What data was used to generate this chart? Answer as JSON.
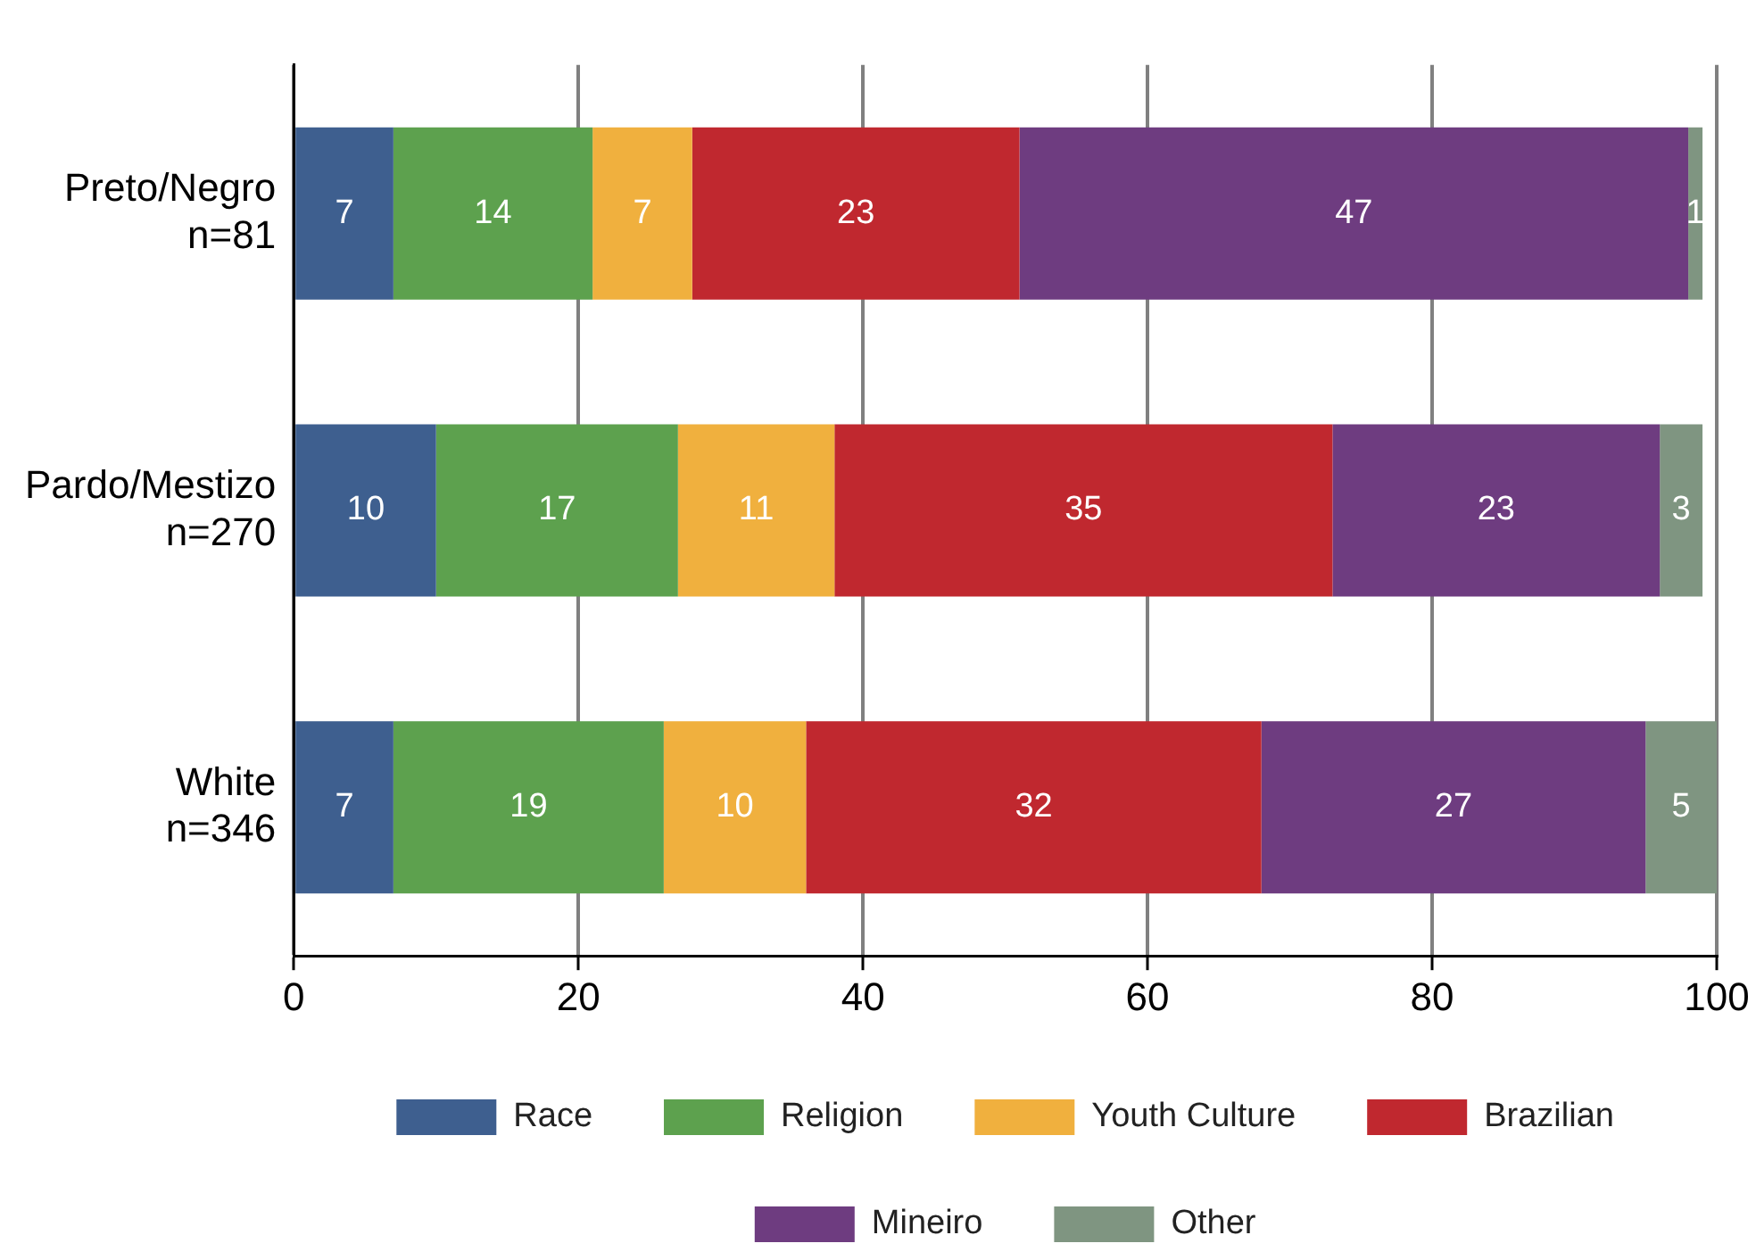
{
  "chart_data": {
    "type": "bar",
    "orientation": "horizontal",
    "stacked": true,
    "categories": [
      "Preto/Negro\nn=81",
      "Pardo/Mestizo\nn=270",
      "White\nn=346"
    ],
    "series": [
      {
        "name": "Race",
        "color": "#3e5f8f",
        "values": [
          7,
          10,
          7
        ]
      },
      {
        "name": "Religion",
        "color": "#5da14e",
        "values": [
          14,
          17,
          19
        ]
      },
      {
        "name": "Youth Culture",
        "color": "#f0b03e",
        "values": [
          7,
          11,
          10
        ]
      },
      {
        "name": "Brazilian",
        "color": "#c0282f",
        "values": [
          23,
          35,
          32
        ]
      },
      {
        "name": "Mineiro",
        "color": "#6e3c80",
        "values": [
          47,
          23,
          27
        ]
      },
      {
        "name": "Other",
        "color": "#7f9581",
        "values": [
          1,
          3,
          5
        ]
      }
    ],
    "xlim": [
      0,
      100
    ],
    "xticks": [
      0,
      20,
      40,
      60,
      80,
      100
    ],
    "grid": "x",
    "legend": "bottom",
    "data_labels": true
  }
}
